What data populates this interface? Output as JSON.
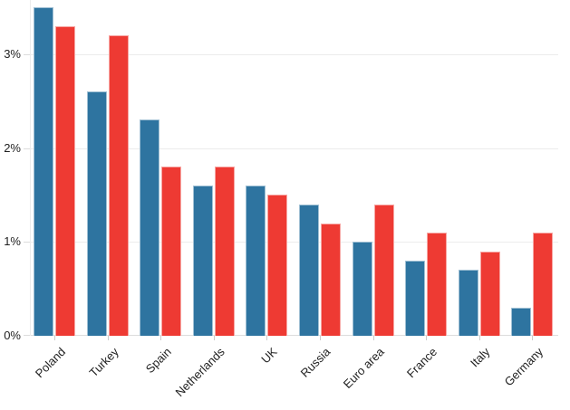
{
  "chart_data": {
    "type": "bar",
    "title": "",
    "xlabel": "",
    "ylabel": "",
    "categories": [
      "Poland",
      "Turkey",
      "Spain",
      "Netherlands",
      "UK",
      "Russia",
      "Euro area",
      "France",
      "Italy",
      "Germany"
    ],
    "series": [
      {
        "name": "blue",
        "color": "#2e74a0",
        "values": [
          3.5,
          2.6,
          2.3,
          1.6,
          1.6,
          1.4,
          1.0,
          0.8,
          0.7,
          0.3
        ]
      },
      {
        "name": "red",
        "color": "#ee3a33",
        "values": [
          3.3,
          3.2,
          1.8,
          1.8,
          1.5,
          1.2,
          1.4,
          1.1,
          0.9,
          1.1
        ]
      }
    ],
    "unit": "%",
    "y_ticks": [
      {
        "value": 0,
        "label": "0%"
      },
      {
        "value": 1,
        "label": "1%"
      },
      {
        "value": 2,
        "label": "2%"
      },
      {
        "value": 3,
        "label": "3%"
      }
    ],
    "ylim": [
      0,
      3.5
    ],
    "grid": "horizontal",
    "legend": "none",
    "x_label_rotation_deg": -45
  },
  "colors": {
    "bar_blue": "#2e74a0",
    "bar_red": "#ee3a33",
    "gridline": "#ececec",
    "axis_line": "#dcdcdc",
    "tick": "#cccccc",
    "label_text": "#1f1f1f",
    "background": "#ffffff"
  }
}
